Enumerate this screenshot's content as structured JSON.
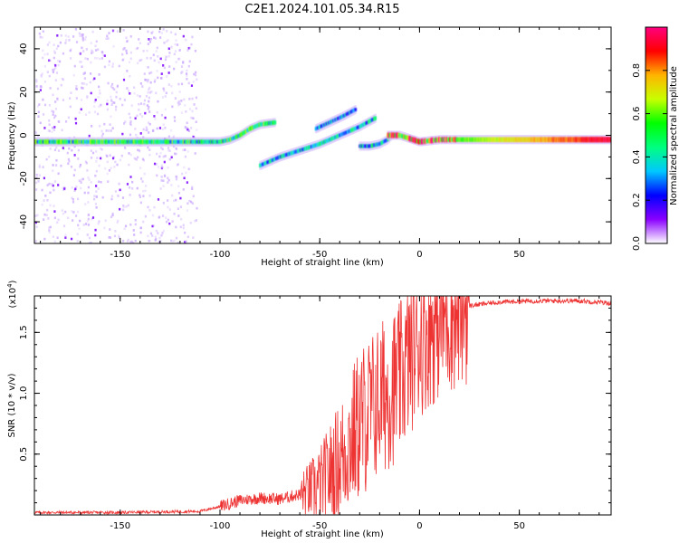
{
  "title": "C2E1.2024.101.05.34.R15",
  "chart_data": [
    {
      "type": "heatmap",
      "name": "spectrogram",
      "xlabel": "Height of straight line (km)",
      "ylabel": "Frequency (Hz)",
      "xlim": [
        -193,
        96
      ],
      "ylim": [
        -50,
        50
      ],
      "xticks": [
        -150,
        -100,
        -50,
        0,
        50
      ],
      "yticks": [
        -40,
        -20,
        0,
        20,
        40
      ],
      "colorbar": {
        "label": "Normalized spectral amplitude",
        "range": [
          0,
          1
        ],
        "ticks": [
          "0.0",
          "0.2",
          "0.4",
          "0.6",
          "0.8"
        ],
        "colors": [
          "#ffffff",
          "#8a00ff",
          "#0000ff",
          "#00c8ff",
          "#00ff80",
          "#00ff00",
          "#c8ff00",
          "#ffb400",
          "#ff0000",
          "#ff0080"
        ]
      },
      "traces": [
        {
          "x": [
            -193,
            -150,
            -120,
            -100,
            -95,
            -90,
            -85,
            -80,
            -72
          ],
          "y": [
            -3,
            -3,
            -3,
            -3,
            -2,
            0,
            3,
            5,
            6
          ],
          "amp": 0.45
        },
        {
          "x": [
            -80,
            -70,
            -60,
            -50,
            -40,
            -30,
            -22
          ],
          "y": [
            -14,
            -10,
            -7,
            -4,
            0,
            4,
            8
          ],
          "amp": 0.35
        },
        {
          "x": [
            -52,
            -45,
            -38,
            -32
          ],
          "y": [
            3,
            6,
            9,
            12
          ],
          "amp": 0.3
        },
        {
          "x": [
            -30,
            -25,
            -20,
            -16,
            -14
          ],
          "y": [
            -5,
            -5,
            -4,
            -2,
            0
          ],
          "amp": 0.35
        },
        {
          "x": [
            -16,
            -10,
            0,
            10,
            30,
            60,
            96
          ],
          "y": [
            0,
            0,
            -3,
            -2,
            -2,
            -2,
            -2
          ],
          "amp": 0.75
        }
      ],
      "noise_region_x": [
        -193,
        -112
      ]
    },
    {
      "type": "line",
      "name": "snr",
      "xlabel": "Height of straight line (km)",
      "ylabel": "SNR (10 * v/v)",
      "y_scale_label": "(x10",
      "y_scale_exp": "4",
      "y_scale_close": ")",
      "xlim": [
        -193,
        96
      ],
      "ylim": [
        0,
        1.8
      ],
      "xticks": [
        -150,
        -100,
        -50,
        0,
        50
      ],
      "yticks": [
        0.5,
        1.0,
        1.5
      ],
      "ytick_labels": [
        "0.5",
        "1.0",
        "1.5"
      ],
      "color": "#ee3333",
      "envelope": {
        "x": [
          -193,
          -150,
          -110,
          -100,
          -90,
          -80,
          -70,
          -60,
          -50,
          -40,
          -30,
          -20,
          -10,
          -5,
          0,
          10,
          20,
          25,
          40,
          60,
          80,
          96
        ],
        "y": [
          0.02,
          0.02,
          0.03,
          0.07,
          0.12,
          0.14,
          0.13,
          0.17,
          0.24,
          0.45,
          0.75,
          0.95,
          1.1,
          1.3,
          1.45,
          1.6,
          1.68,
          1.72,
          1.75,
          1.76,
          1.76,
          1.74
        ]
      }
    }
  ]
}
